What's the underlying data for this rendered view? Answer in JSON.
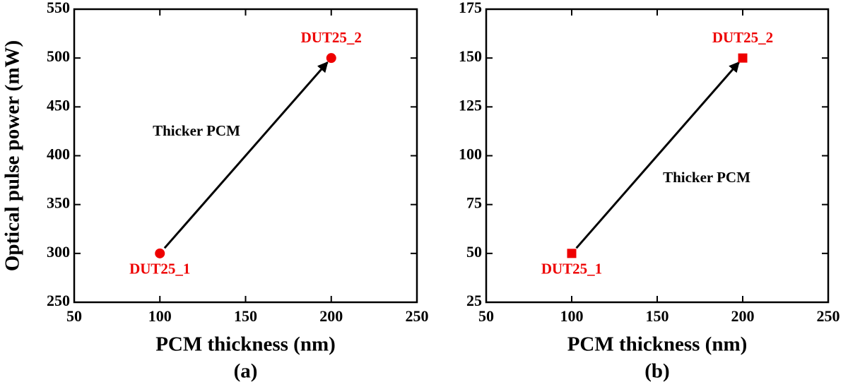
{
  "chart_data": [
    {
      "type": "scatter",
      "panel": "(a)",
      "x_label": "PCM thickness (nm)",
      "y_label": "Optical pulse power (mW)",
      "x": [
        100,
        200
      ],
      "values": [
        300,
        500
      ],
      "point_labels": [
        "DUT25_1",
        "DUT25_2"
      ],
      "color": "#ee0000",
      "marker": "circle",
      "annotation": "Thicker PCM",
      "xlim": [
        50,
        250
      ],
      "xticks": [
        50,
        100,
        150,
        200,
        250
      ],
      "ylim": [
        250,
        550
      ],
      "yticks": [
        250,
        300,
        350,
        400,
        450,
        500,
        550
      ]
    },
    {
      "type": "scatter",
      "panel": "(b)",
      "x_label": "PCM thickness (nm)",
      "x": [
        100,
        200
      ],
      "values": [
        50,
        150
      ],
      "point_labels": [
        "DUT25_1",
        "DUT25_2"
      ],
      "color": "#ee0000",
      "marker": "square",
      "annotation": "Thicker PCM",
      "xlim": [
        50,
        250
      ],
      "xticks": [
        50,
        100,
        150,
        200,
        250
      ],
      "ylim": [
        25,
        175
      ],
      "yticks": [
        25,
        50,
        75,
        100,
        125,
        150,
        175
      ]
    }
  ]
}
